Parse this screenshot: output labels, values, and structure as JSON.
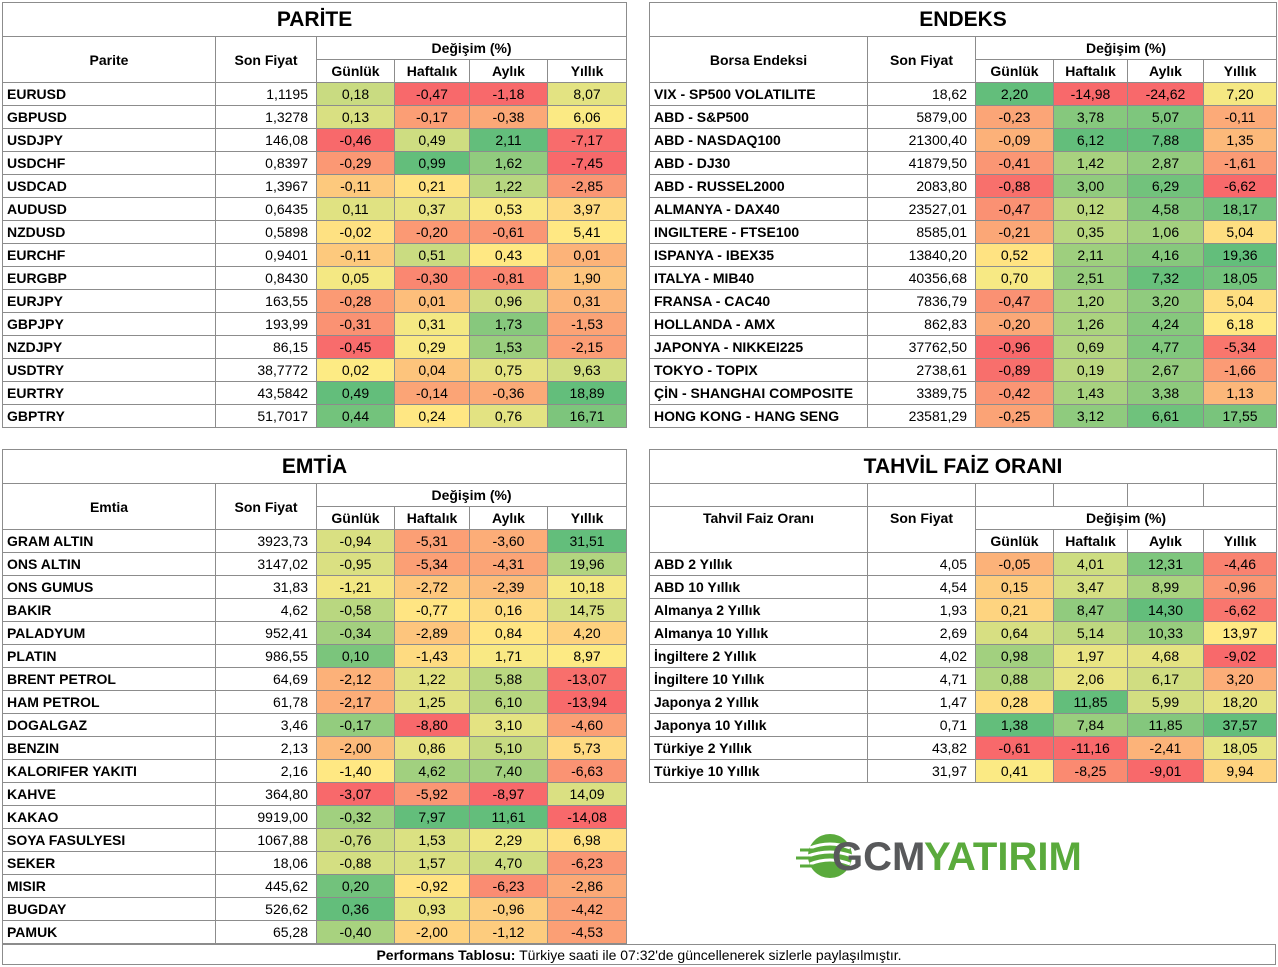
{
  "parite": {
    "title": "PARİTE",
    "col_name": "Parite",
    "col_price": "Son Fiyat",
    "col_change": "Değişim (%)",
    "sub_cols": [
      "Günlük",
      "Haftalık",
      "Aylık",
      "Yıllık"
    ],
    "rows": [
      {
        "name": "EURUSD",
        "price": "1,1195",
        "chg": [
          "0,18",
          "-0,47",
          "-1,18",
          "8,07"
        ]
      },
      {
        "name": "GBPUSD",
        "price": "1,3278",
        "chg": [
          "0,13",
          "-0,17",
          "-0,38",
          "6,06"
        ]
      },
      {
        "name": "USDJPY",
        "price": "146,08",
        "chg": [
          "-0,46",
          "0,49",
          "2,11",
          "-7,17"
        ]
      },
      {
        "name": "USDCHF",
        "price": "0,8397",
        "chg": [
          "-0,29",
          "0,99",
          "1,62",
          "-7,45"
        ]
      },
      {
        "name": "USDCAD",
        "price": "1,3967",
        "chg": [
          "-0,11",
          "0,21",
          "1,22",
          "-2,85"
        ]
      },
      {
        "name": "AUDUSD",
        "price": "0,6435",
        "chg": [
          "0,11",
          "0,37",
          "0,53",
          "3,97"
        ]
      },
      {
        "name": "NZDUSD",
        "price": "0,5898",
        "chg": [
          "-0,02",
          "-0,20",
          "-0,61",
          "5,41"
        ]
      },
      {
        "name": "EURCHF",
        "price": "0,9401",
        "chg": [
          "-0,11",
          "0,51",
          "0,43",
          "0,01"
        ]
      },
      {
        "name": "EURGBP",
        "price": "0,8430",
        "chg": [
          "0,05",
          "-0,30",
          "-0,81",
          "1,90"
        ]
      },
      {
        "name": "EURJPY",
        "price": "163,55",
        "chg": [
          "-0,28",
          "0,01",
          "0,96",
          "0,31"
        ]
      },
      {
        "name": "GBPJPY",
        "price": "193,99",
        "chg": [
          "-0,31",
          "0,31",
          "1,73",
          "-1,53"
        ]
      },
      {
        "name": "NZDJPY",
        "price": "86,15",
        "chg": [
          "-0,45",
          "0,29",
          "1,53",
          "-2,15"
        ]
      },
      {
        "name": "USDTRY",
        "price": "38,7772",
        "chg": [
          "0,02",
          "0,04",
          "0,75",
          "9,63"
        ]
      },
      {
        "name": "EURTRY",
        "price": "43,5842",
        "chg": [
          "0,49",
          "-0,14",
          "-0,36",
          "18,89"
        ]
      },
      {
        "name": "GBPTRY",
        "price": "51,7017",
        "chg": [
          "0,44",
          "0,24",
          "0,76",
          "16,71"
        ]
      }
    ]
  },
  "endeks": {
    "title": "ENDEKS",
    "col_name": "Borsa Endeksi",
    "col_price": "Son Fiyat",
    "col_change": "Değişim (%)",
    "sub_cols": [
      "Günlük",
      "Haftalık",
      "Aylık",
      "Yıllık"
    ],
    "rows": [
      {
        "name": "VIX  - SP500 VOLATILITE",
        "price": "18,62",
        "chg": [
          "2,20",
          "-14,98",
          "-24,62",
          "7,20"
        ]
      },
      {
        "name": "ABD - S&P500",
        "price": "5879,00",
        "chg": [
          "-0,23",
          "3,78",
          "5,07",
          "-0,11"
        ]
      },
      {
        "name": "ABD - NASDAQ100",
        "price": "21300,40",
        "chg": [
          "-0,09",
          "6,12",
          "7,88",
          "1,35"
        ]
      },
      {
        "name": "ABD - DJ30",
        "price": "41879,50",
        "chg": [
          "-0,41",
          "1,42",
          "2,87",
          "-1,61"
        ]
      },
      {
        "name": "ABD - RUSSEL2000",
        "price": "2083,80",
        "chg": [
          "-0,88",
          "3,00",
          "6,29",
          "-6,62"
        ]
      },
      {
        "name": "ALMANYA - DAX40",
        "price": "23527,01",
        "chg": [
          "-0,47",
          "0,12",
          "4,58",
          "18,17"
        ]
      },
      {
        "name": "INGILTERE - FTSE100",
        "price": "8585,01",
        "chg": [
          "-0,21",
          "0,35",
          "1,06",
          "5,04"
        ]
      },
      {
        "name": "ISPANYA - IBEX35",
        "price": "13840,20",
        "chg": [
          "0,52",
          "2,11",
          "4,16",
          "19,36"
        ]
      },
      {
        "name": "ITALYA - MIB40",
        "price": "40356,68",
        "chg": [
          "0,70",
          "2,51",
          "7,32",
          "18,05"
        ]
      },
      {
        "name": "FRANSA - CAC40",
        "price": "7836,79",
        "chg": [
          "-0,47",
          "1,20",
          "3,20",
          "5,04"
        ]
      },
      {
        "name": "HOLLANDA - AMX",
        "price": "862,83",
        "chg": [
          "-0,20",
          "1,26",
          "4,24",
          "6,18"
        ]
      },
      {
        "name": "JAPONYA - NIKKEI225",
        "price": "37762,50",
        "chg": [
          "-0,96",
          "0,69",
          "4,77",
          "-5,34"
        ]
      },
      {
        "name": "TOKYO - TOPIX",
        "price": "2738,61",
        "chg": [
          "-0,89",
          "0,19",
          "2,67",
          "-1,66"
        ]
      },
      {
        "name": "ÇİN - SHANGHAI COMPOSITE",
        "price": "3389,75",
        "chg": [
          "-0,42",
          "1,43",
          "3,38",
          "1,13"
        ]
      },
      {
        "name": "HONG KONG - HANG SENG",
        "price": "23581,29",
        "chg": [
          "-0,25",
          "3,12",
          "6,61",
          "17,55"
        ]
      }
    ]
  },
  "emtia": {
    "title": "EMTİA",
    "col_name": "Emtia",
    "col_price": "Son Fiyat",
    "col_change": "Değişim (%)",
    "sub_cols": [
      "Günlük",
      "Haftalık",
      "Aylık",
      "Yıllık"
    ],
    "rows": [
      {
        "name": "GRAM ALTIN",
        "price": "3923,73",
        "chg": [
          "-0,94",
          "-5,31",
          "-3,60",
          "31,51"
        ]
      },
      {
        "name": "ONS ALTIN",
        "price": "3147,02",
        "chg": [
          "-0,95",
          "-5,34",
          "-4,31",
          "19,96"
        ]
      },
      {
        "name": "ONS GUMUS",
        "price": "31,83",
        "chg": [
          "-1,21",
          "-2,72",
          "-2,39",
          "10,18"
        ]
      },
      {
        "name": "BAKIR",
        "price": "4,62",
        "chg": [
          "-0,58",
          "-0,77",
          "0,16",
          "14,75"
        ]
      },
      {
        "name": "PALADYUM",
        "price": "952,41",
        "chg": [
          "-0,34",
          "-2,89",
          "0,84",
          "4,20"
        ]
      },
      {
        "name": "PLATIN",
        "price": "986,55",
        "chg": [
          "0,10",
          "-1,43",
          "1,71",
          "8,97"
        ]
      },
      {
        "name": "BRENT PETROL",
        "price": "64,69",
        "chg": [
          "-2,12",
          "1,22",
          "5,88",
          "-13,07"
        ]
      },
      {
        "name": "HAM PETROL",
        "price": "61,78",
        "chg": [
          "-2,17",
          "1,25",
          "6,10",
          "-13,94"
        ]
      },
      {
        "name": "DOGALGAZ",
        "price": "3,46",
        "chg": [
          "-0,17",
          "-8,80",
          "3,10",
          "-4,60"
        ]
      },
      {
        "name": "BENZIN",
        "price": "2,13",
        "chg": [
          "-2,00",
          "0,86",
          "5,10",
          "5,73"
        ]
      },
      {
        "name": "KALORIFER YAKITI",
        "price": "2,16",
        "chg": [
          "-1,40",
          "4,62",
          "7,40",
          "-6,63"
        ]
      },
      {
        "name": "KAHVE",
        "price": "364,80",
        "chg": [
          "-3,07",
          "-5,92",
          "-8,97",
          "14,09"
        ]
      },
      {
        "name": "KAKAO",
        "price": "9919,00",
        "chg": [
          "-0,32",
          "7,97",
          "11,61",
          "-14,08"
        ]
      },
      {
        "name": "SOYA FASULYESI",
        "price": "1067,88",
        "chg": [
          "-0,76",
          "1,53",
          "2,29",
          "6,98"
        ]
      },
      {
        "name": "SEKER",
        "price": "18,06",
        "chg": [
          "-0,88",
          "1,57",
          "4,70",
          "-6,23"
        ]
      },
      {
        "name": "MISIR",
        "price": "445,62",
        "chg": [
          "0,20",
          "-0,92",
          "-6,23",
          "-2,86"
        ]
      },
      {
        "name": "BUGDAY",
        "price": "526,62",
        "chg": [
          "0,36",
          "0,93",
          "-0,96",
          "-4,42"
        ]
      },
      {
        "name": "PAMUK",
        "price": "65,28",
        "chg": [
          "-0,40",
          "-2,00",
          "-1,12",
          "-4,53"
        ]
      }
    ]
  },
  "tahvil": {
    "title": "TAHVİL FAİZ ORANI",
    "col_name": "Tahvil Faiz Oranı",
    "col_price": "Son Fiyat",
    "col_change": "Değişim (%)",
    "sub_cols": [
      "Günlük",
      "Haftalık",
      "Aylık",
      "Yıllık"
    ],
    "rows": [
      {
        "name": "ABD 2 Yıllık",
        "price": "4,05",
        "chg": [
          "-0,05",
          "4,01",
          "12,31",
          "-4,46"
        ]
      },
      {
        "name": "ABD 10 Yıllık",
        "price": "4,54",
        "chg": [
          "0,15",
          "3,47",
          "8,99",
          "-0,96"
        ]
      },
      {
        "name": "Almanya 2 Yıllık",
        "price": "1,93",
        "chg": [
          "0,21",
          "8,47",
          "14,30",
          "-6,62"
        ]
      },
      {
        "name": "Almanya 10 Yıllık",
        "price": "2,69",
        "chg": [
          "0,64",
          "5,14",
          "10,33",
          "13,97"
        ]
      },
      {
        "name": "İngiltere 2 Yıllık",
        "price": "4,02",
        "chg": [
          "0,98",
          "1,97",
          "4,68",
          "-9,02"
        ]
      },
      {
        "name": "İngiltere 10 Yıllık",
        "price": "4,71",
        "chg": [
          "0,88",
          "2,06",
          "6,17",
          "3,20"
        ]
      },
      {
        "name": "Japonya 2 Yıllık",
        "price": "1,47",
        "chg": [
          "0,28",
          "11,85",
          "5,99",
          "18,20"
        ]
      },
      {
        "name": "Japonya 10 Yıllık",
        "price": "0,71",
        "chg": [
          "1,38",
          "7,84",
          "11,85",
          "37,57"
        ]
      },
      {
        "name": "Türkiye 2 Yıllık",
        "price": "43,82",
        "chg": [
          "-0,61",
          "-11,16",
          "-2,41",
          "18,05"
        ]
      },
      {
        "name": "Türkiye 10 Yıllık",
        "price": "31,97",
        "chg": [
          "0,41",
          "-8,25",
          "-9,01",
          "9,94"
        ]
      }
    ]
  },
  "logo": {
    "part1": "GCM",
    "part2": "YATIRIM",
    "color1": "#58595b",
    "color2": "#5aaa3c"
  },
  "footer": {
    "bold": "Performans Tablosu:",
    "text": " Türkiye saati ile 07:32'de güncellenerek sizlerle paylaşılmıştır."
  },
  "colors": {
    "green": "#63be7b",
    "yellow": "#ffeb84",
    "red": "#f8696b"
  }
}
